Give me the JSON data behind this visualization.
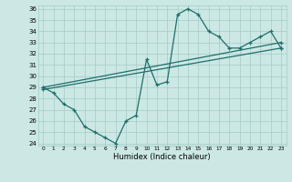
{
  "xlabel": "Humidex (Indice chaleur)",
  "bg_color": "#cce8e4",
  "line_color": "#1e6e6a",
  "grid_color": "#aacfcc",
  "x_min": 0,
  "x_max": 23,
  "y_min": 24,
  "y_max": 36,
  "line1_x": [
    0,
    1,
    2,
    3,
    4,
    5,
    6,
    7,
    8,
    9,
    10,
    11,
    12,
    13,
    14,
    15,
    16,
    17,
    18,
    19,
    20,
    21,
    22,
    23
  ],
  "line1_y": [
    29,
    28.5,
    27.5,
    27,
    25.5,
    25,
    24.5,
    24,
    26,
    26.5,
    31.5,
    29.2,
    29.5,
    35.5,
    36,
    35.5,
    34,
    33.5,
    32.5,
    32.5,
    33,
    33.5,
    34,
    32.5
  ],
  "line2_x": [
    0,
    23
  ],
  "line2_y": [
    29,
    33.0
  ],
  "line3_x": [
    0,
    23
  ],
  "line3_y": [
    28.8,
    32.5
  ],
  "ytick_vals": [
    24,
    25,
    26,
    27,
    28,
    29,
    30,
    31,
    32,
    33,
    34,
    35,
    36
  ],
  "xtick_labels": [
    "0",
    "1",
    "2",
    "3",
    "4",
    "5",
    "6",
    "7",
    "8",
    "9",
    "10",
    "11",
    "12",
    "13",
    "14",
    "15",
    "16",
    "17",
    "18",
    "19",
    "20",
    "21",
    "22",
    "23"
  ]
}
